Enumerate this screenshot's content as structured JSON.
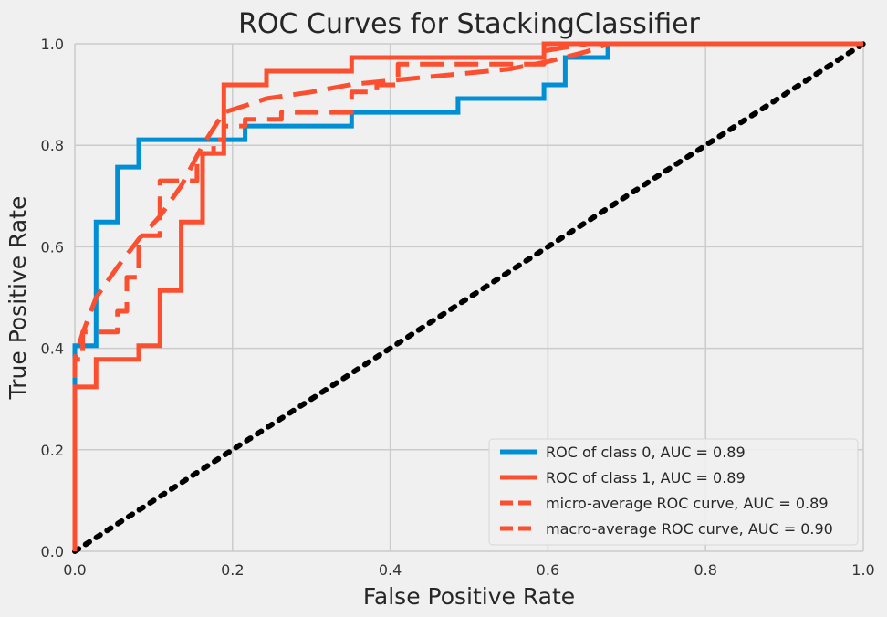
{
  "chart_data": {
    "type": "line",
    "title": "ROC Curves for StackingClassifier",
    "xlabel": "False Positive Rate",
    "ylabel": "True Positive Rate",
    "xlim": [
      0,
      1
    ],
    "ylim": [
      0,
      1
    ],
    "x_ticks": [
      "0.0",
      "0.2",
      "0.4",
      "0.6",
      "0.8",
      "1.0"
    ],
    "y_ticks": [
      "0.0",
      "0.2",
      "0.4",
      "0.6",
      "0.8",
      "1.0"
    ],
    "grid": true,
    "legend_position": "lower-right",
    "series": [
      {
        "name": "ROC of class 0, AUC = 0.89",
        "color": "#008fd5",
        "style": "solid",
        "x": [
          0,
          0,
          0.027,
          0.027,
          0.054,
          0.054,
          0.081,
          0.081,
          0.189,
          0.189,
          0.216,
          0.216,
          0.351,
          0.351,
          0.486,
          0.486,
          0.595,
          0.595,
          0.622,
          0.622,
          0.676,
          0.676,
          1.0
        ],
        "y": [
          0,
          0.405,
          0.405,
          0.649,
          0.649,
          0.757,
          0.757,
          0.811,
          0.811,
          0.811,
          0.811,
          0.838,
          0.838,
          0.865,
          0.865,
          0.892,
          0.892,
          0.919,
          0.919,
          0.973,
          0.973,
          1.0,
          1.0
        ]
      },
      {
        "name": "ROC of class 1, AUC = 0.89",
        "color": "#fc4f30",
        "style": "solid",
        "x": [
          0,
          0,
          0.027,
          0.027,
          0.081,
          0.081,
          0.108,
          0.108,
          0.135,
          0.135,
          0.162,
          0.162,
          0.189,
          0.189,
          0.243,
          0.243,
          0.351,
          0.351,
          0.595,
          0.595,
          1.0
        ],
        "y": [
          0,
          0.324,
          0.324,
          0.378,
          0.378,
          0.405,
          0.405,
          0.514,
          0.514,
          0.649,
          0.649,
          0.784,
          0.784,
          0.919,
          0.919,
          0.946,
          0.946,
          0.973,
          0.973,
          1.0,
          1.0
        ]
      },
      {
        "name": "micro-average ROC curve, AUC = 0.89",
        "color": "#fc4f30",
        "style": "dashed",
        "x": [
          0,
          0,
          0.01,
          0.01,
          0.054,
          0.054,
          0.066,
          0.066,
          0.081,
          0.081,
          0.108,
          0.108,
          0.135,
          0.135,
          0.155,
          0.155,
          0.176,
          0.176,
          0.189,
          0.189,
          0.216,
          0.216,
          0.262,
          0.262,
          0.351,
          0.351,
          0.383,
          0.383,
          0.41,
          0.41,
          0.595,
          0.595,
          0.65,
          1.0
        ],
        "y": [
          0,
          0.378,
          0.378,
          0.432,
          0.432,
          0.473,
          0.473,
          0.54,
          0.54,
          0.622,
          0.622,
          0.73,
          0.73,
          0.73,
          0.73,
          0.784,
          0.784,
          0.811,
          0.811,
          0.838,
          0.838,
          0.851,
          0.851,
          0.865,
          0.865,
          0.905,
          0.905,
          0.919,
          0.919,
          0.96,
          0.96,
          0.986,
          1.0,
          1.0
        ]
      },
      {
        "name": "macro-average ROC curve, AUC = 0.90",
        "color": "#fc4f30",
        "style": "dashed",
        "x": [
          0,
          0,
          0.01,
          0.027,
          0.054,
          0.081,
          0.108,
          0.135,
          0.162,
          0.189,
          0.216,
          0.243,
          0.3,
          0.351,
          0.45,
          0.55,
          0.6,
          0.65,
          0.676,
          1.0
        ],
        "y": [
          0,
          0.38,
          0.43,
          0.5,
          0.56,
          0.615,
          0.66,
          0.72,
          0.8,
          0.865,
          0.878,
          0.892,
          0.905,
          0.92,
          0.935,
          0.95,
          0.965,
          0.985,
          1.0,
          1.0
        ]
      },
      {
        "name": "",
        "color": "#000000",
        "style": "dotted",
        "x": [
          0,
          1
        ],
        "y": [
          0,
          1
        ]
      }
    ]
  }
}
